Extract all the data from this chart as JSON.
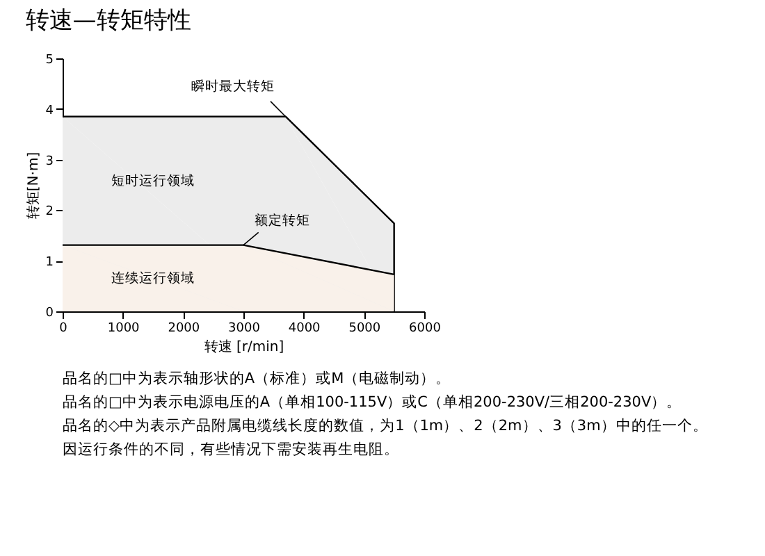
{
  "chart_data": {
    "type": "area",
    "title": "转速—转矩特性",
    "xlabel": "转速 [r/min]",
    "ylabel": "转矩[N·m]",
    "series": [
      {
        "name": "短时运行领域",
        "color": "#ececec",
        "x": [
          0,
          3700,
          5500,
          5500
        ],
        "values": [
          3.85,
          3.85,
          1.74,
          0
        ]
      },
      {
        "name": "连续运行领域",
        "color": "#f9f1ea",
        "x": [
          0,
          3000,
          5500
        ],
        "values": [
          1.31,
          1.31,
          0.73
        ]
      }
    ],
    "xlim": [
      0,
      6000
    ],
    "xticks": [
      0,
      1000,
      2000,
      3000,
      4000,
      5000,
      6000
    ],
    "ylim": [
      0,
      5
    ],
    "yticks": [
      0,
      1,
      2,
      3,
      4,
      5
    ],
    "grid": false,
    "annotations": [
      {
        "text": "瞬时最大转矩",
        "x": 3700,
        "y": 3.85
      },
      {
        "text": "额定转矩",
        "x": 3000,
        "y": 1.31
      },
      "品名的□中为表示轴形状的A（标准）或M（电磁制动）。",
      "品名的□中为表示电源电压的A（单相100-115V）或C（单相200-230V/三相200-230V）。",
      "品名的◇中为表示产品附属电缆线长度的数值，为1（1m）、2（2m）、3（3m）中的任一个。",
      "因运行条件的不同，有些情况下需安装再生电阻。"
    ]
  }
}
